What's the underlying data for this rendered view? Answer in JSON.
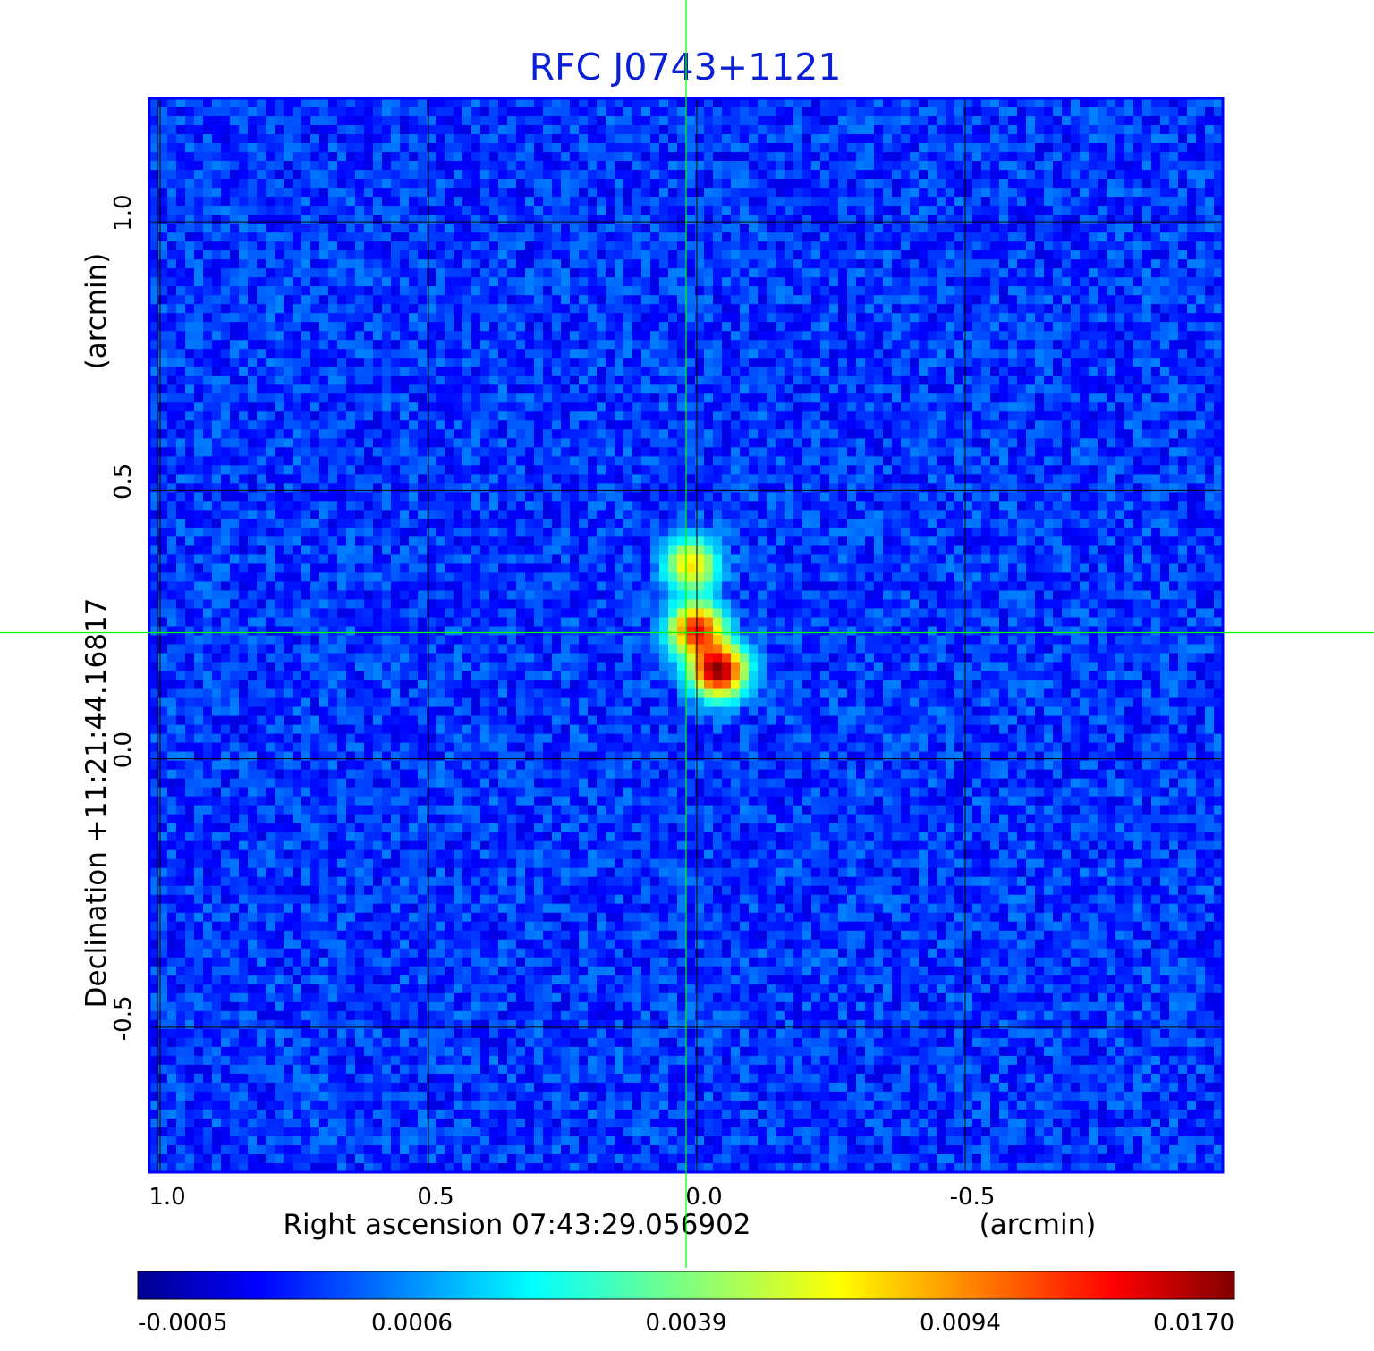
{
  "chart_data": {
    "type": "heatmap",
    "title": "RFC J0743+1121",
    "xlabel": "Right ascension  07:43:29.056902",
    "xunit": "(arcmin)",
    "ylabel": "Declination  +11:21:44.16817",
    "yunit": "(arcmin)",
    "xlim": [
      1.02,
      -0.98
    ],
    "ylim": [
      -0.77,
      1.23
    ],
    "x_ticks": [
      {
        "value": 1.0,
        "label": "1.0"
      },
      {
        "value": 0.5,
        "label": "0.5"
      },
      {
        "value": 0.0,
        "label": "0.0"
      },
      {
        "value": -0.5,
        "label": "-0.5"
      }
    ],
    "y_ticks": [
      {
        "value": 1.0,
        "label": "1.0"
      },
      {
        "value": 0.5,
        "label": "0.5"
      },
      {
        "value": 0.0,
        "label": "0.0"
      },
      {
        "value": -0.5,
        "label": "-0.5"
      }
    ],
    "grid": true,
    "crosshair": {
      "x": 0.02,
      "y": 0.235,
      "color": "#00ff00"
    },
    "colorbar": {
      "orientation": "horizontal",
      "ticks": [
        "-0.0005",
        "0.0006",
        "0.0039",
        "0.0094",
        "0.0170"
      ],
      "colors": [
        "#00008f",
        "#0000ff",
        "#00ffff",
        "#ffff00",
        "#ff0000",
        "#800000"
      ]
    },
    "source_components": [
      {
        "x": 0.01,
        "y": 0.36,
        "peak": 0.0075
      },
      {
        "x": 0.0,
        "y": 0.24,
        "peak": 0.0135
      },
      {
        "x": -0.04,
        "y": 0.165,
        "peak": 0.017
      }
    ],
    "background_level": 0.0002
  }
}
